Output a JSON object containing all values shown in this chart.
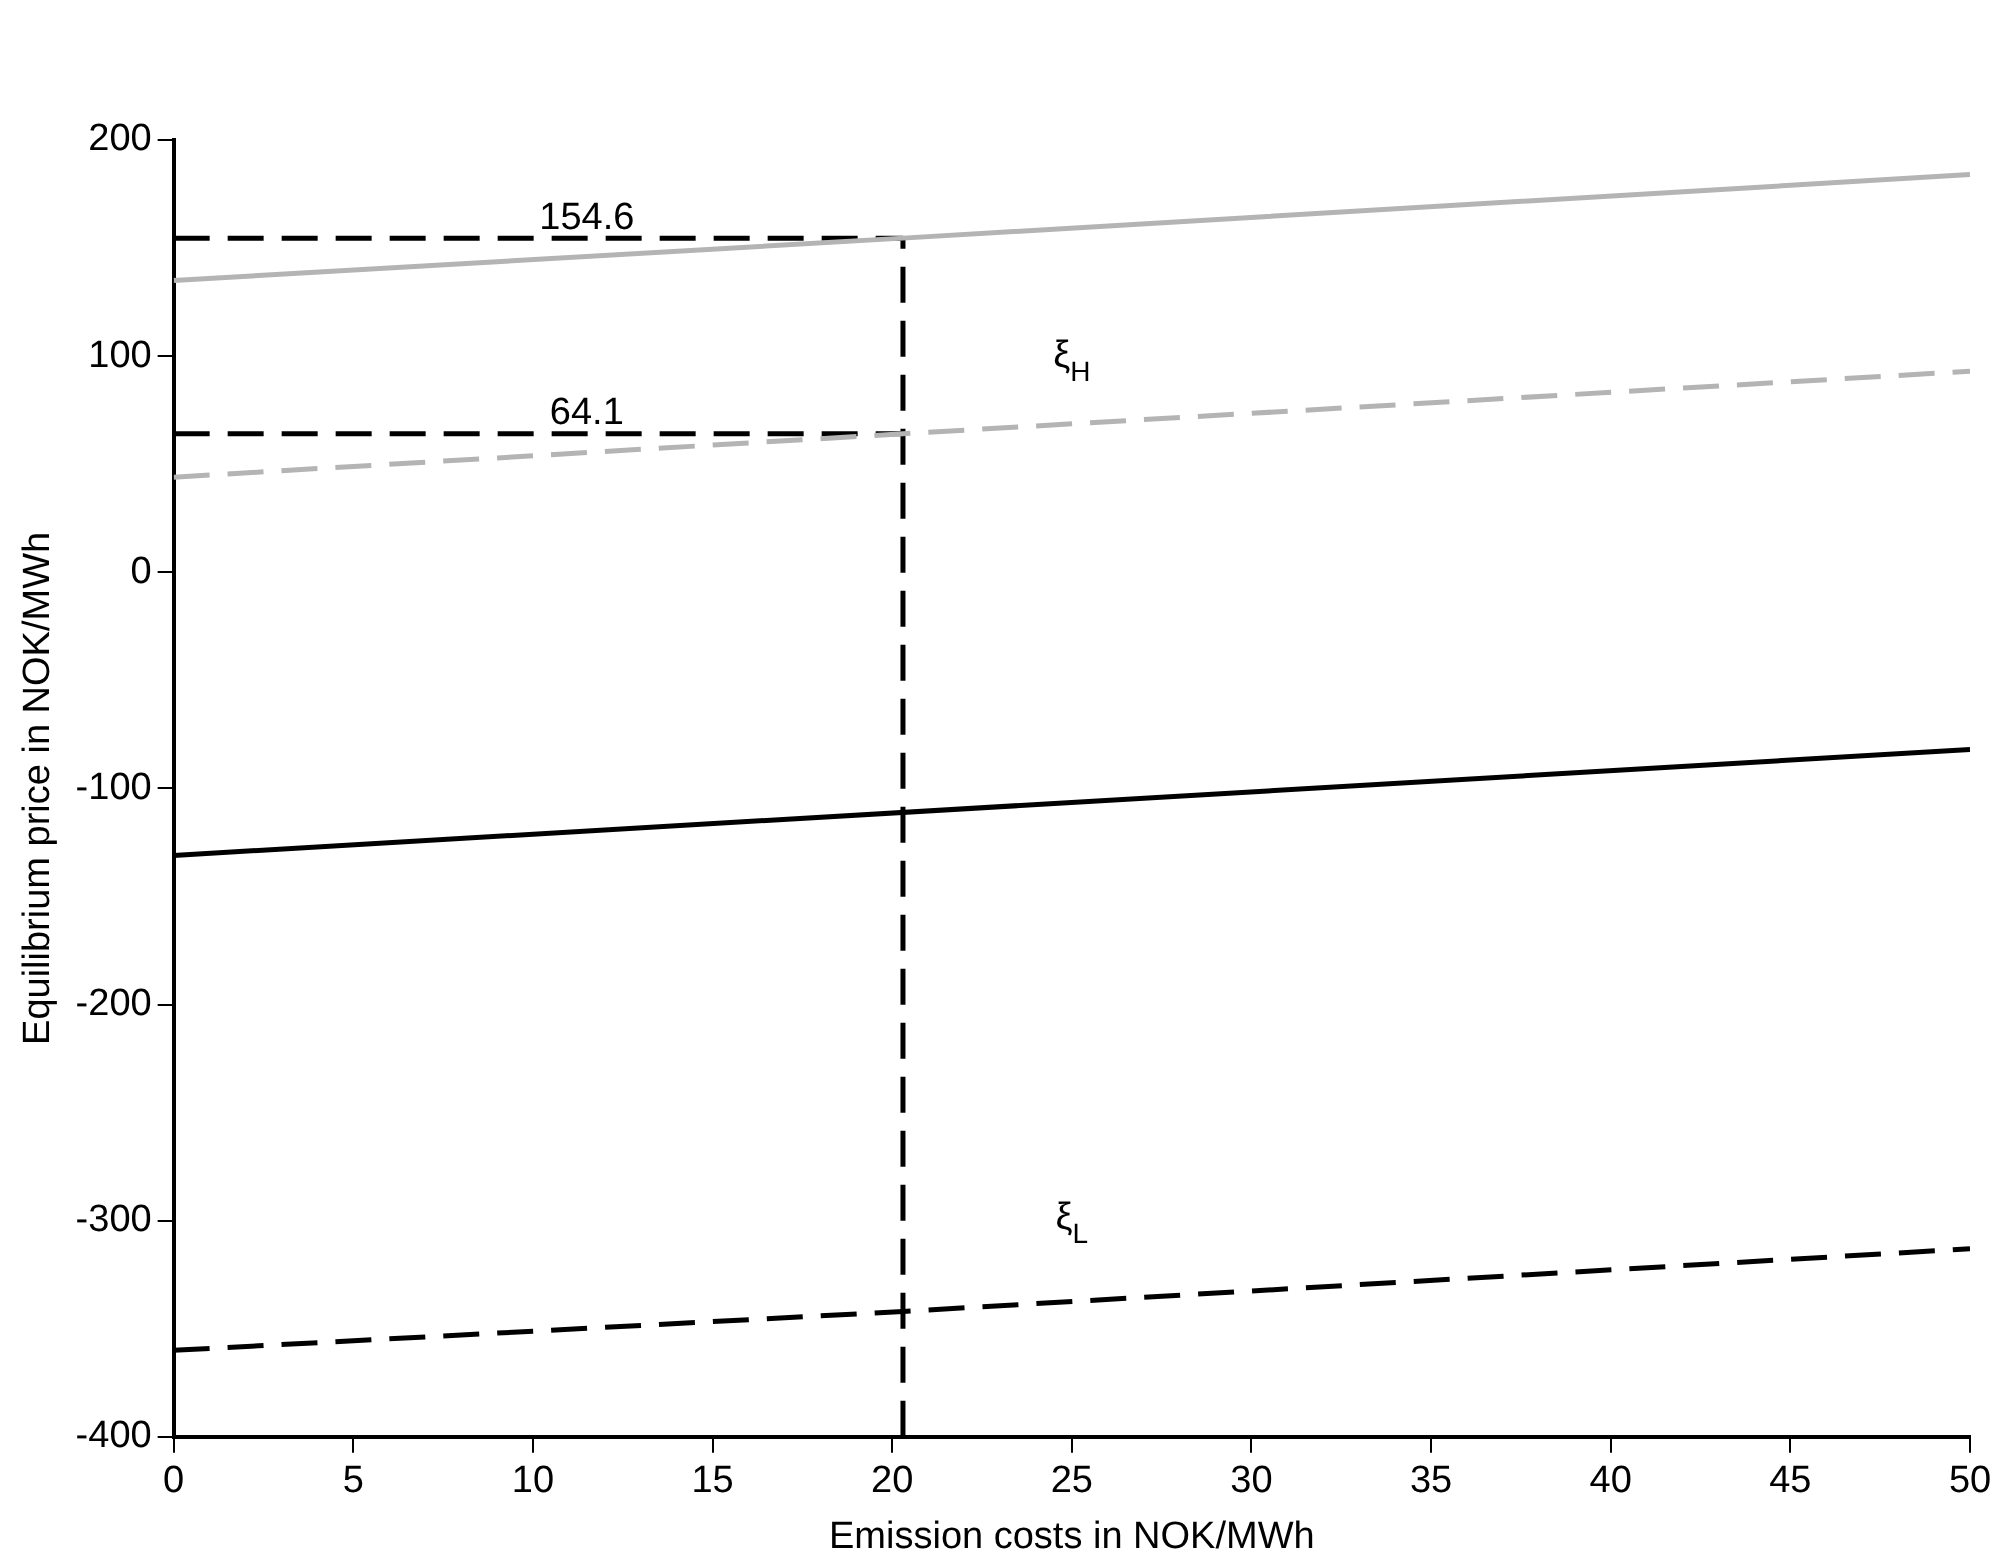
{
  "chart_data": {
    "type": "line",
    "xlabel": "Emission costs in NOK/MWh",
    "ylabel": "Equilibrium price in NOK/MWh",
    "xlim": [
      0,
      50
    ],
    "xticks": [
      0,
      5,
      10,
      15,
      20,
      25,
      30,
      35,
      40,
      45,
      50
    ],
    "ylim": [
      -400,
      200
    ],
    "yticks": [
      -400,
      -300,
      -200,
      -100,
      0,
      100,
      200
    ],
    "grid": false,
    "legend": false,
    "marker": "none",
    "series": [
      {
        "color": "#b4b4b4",
        "line_style": "solid",
        "x": [
          0,
          20.3,
          50
        ],
        "values": [
          135,
          154.6,
          184
        ]
      },
      {
        "color": "#b4b4b4",
        "line_style": "dashed",
        "x": [
          0,
          20.3,
          50
        ],
        "values": [
          44,
          64.1,
          93
        ]
      },
      {
        "color": "#000000",
        "line_style": "solid",
        "x": [
          0,
          50
        ],
        "values": [
          -131,
          -82
        ]
      },
      {
        "color": "#000000",
        "line_style": "dashed",
        "x": [
          0,
          20.3,
          50
        ],
        "values": [
          -360,
          -342,
          -313
        ]
      },
      {
        "color": "#000000",
        "line_style": "dashed",
        "x": [
          0,
          20.3
        ],
        "values": [
          154.6,
          154.6
        ]
      },
      {
        "color": "#000000",
        "line_style": "dashed",
        "x": [
          0,
          20.3
        ],
        "values": [
          64.1,
          64.1
        ]
      },
      {
        "color": "#000000",
        "line_style": "dashed",
        "x": [
          20.3,
          20.3
        ],
        "values": [
          -400,
          154.6
        ]
      }
    ],
    "annotations": [
      "154.6",
      "64.1",
      "ξ$_{H}$",
      "ξ$_{L}$"
    ]
  }
}
